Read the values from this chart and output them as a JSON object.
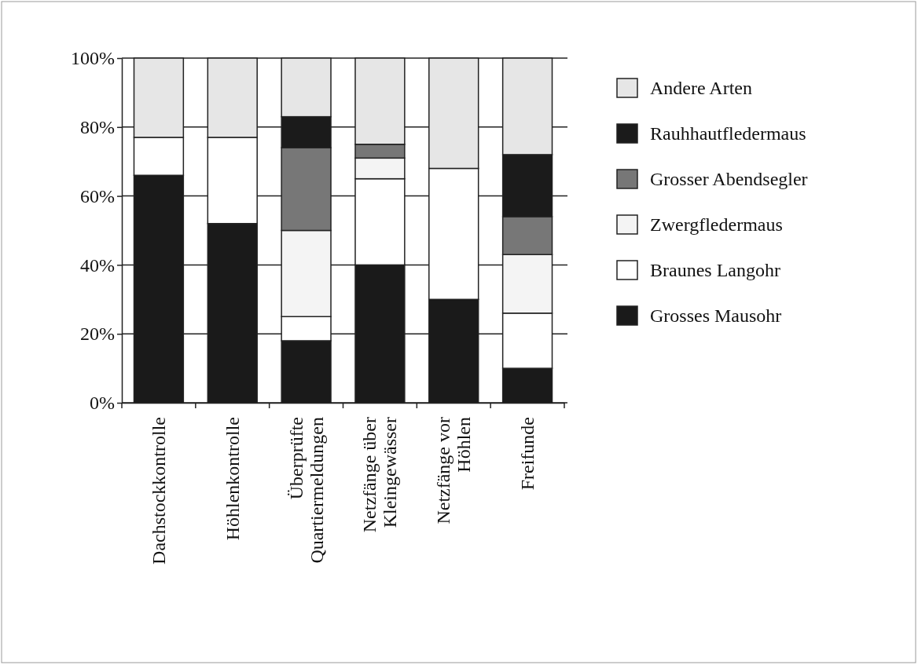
{
  "chart_data": {
    "type": "bar",
    "stacked": true,
    "categories": [
      "Dachstockkontrolle",
      "Höhlenkontrolle",
      "Überprüfte\nQuartiermeldungen",
      "Netzfänge über\nKleingewässer",
      "Netzfänge vor\nHöhlen",
      "Freifunde"
    ],
    "series": [
      {
        "name": "Grosses Mausohr",
        "color": "#1a1a1a",
        "values": [
          66,
          52,
          18,
          40,
          30,
          10
        ]
      },
      {
        "name": "Braunes Langohr",
        "color": "#ffffff",
        "values": [
          11,
          25,
          7,
          25,
          38,
          16
        ]
      },
      {
        "name": "Zwergfledermaus",
        "color": "#f4f4f4",
        "values": [
          0,
          0,
          25,
          6,
          0,
          17
        ]
      },
      {
        "name": "Grosser Abendsegler",
        "color": "#777777",
        "values": [
          0,
          0,
          24,
          4,
          0,
          11
        ]
      },
      {
        "name": "Rauhhautfledermaus",
        "color": "#1b1b1b",
        "values": [
          0,
          0,
          9,
          0,
          0,
          18
        ]
      },
      {
        "name": "Andere Arten",
        "color": "#e6e6e6",
        "values": [
          23,
          23,
          17,
          25,
          32,
          28
        ]
      }
    ],
    "ylim": [
      0,
      100
    ],
    "yticks": [
      {
        "value": 0,
        "label": "0%"
      },
      {
        "value": 20,
        "label": "20%"
      },
      {
        "value": 40,
        "label": "40%"
      },
      {
        "value": 60,
        "label": "60%"
      },
      {
        "value": 80,
        "label": "80%"
      },
      {
        "value": 100,
        "label": "100%"
      }
    ],
    "grid": "y",
    "legend": "right"
  }
}
